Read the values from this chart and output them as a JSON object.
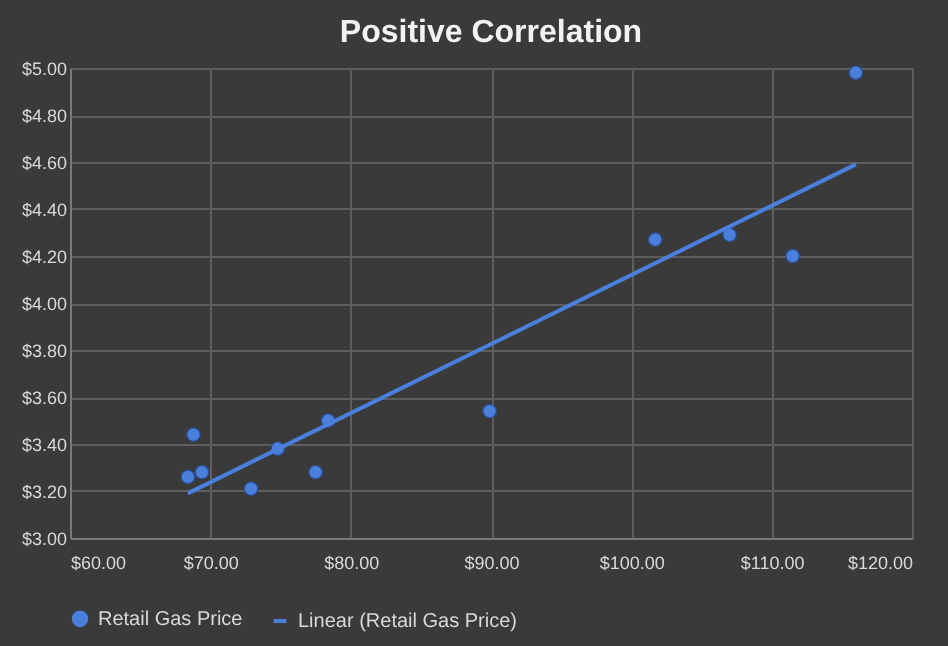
{
  "chart_data": {
    "type": "scatter",
    "title": "Positive Correlation",
    "x": [
      68.8,
      68.4,
      69.4,
      72.9,
      74.8,
      77.5,
      78.4,
      89.9,
      101.7,
      107.0,
      111.5,
      116.0
    ],
    "series": [
      {
        "name": "Retail Gas Price",
        "color": "#4a7fdc",
        "values": [
          3.44,
          3.26,
          3.28,
          3.21,
          3.38,
          3.28,
          3.5,
          3.54,
          4.27,
          4.29,
          4.2,
          4.98
        ],
        "marker": "circle"
      },
      {
        "name": "Linear (Retail Gas Price)",
        "type": "line",
        "color": "#4a7fdc",
        "x": [
          68.4,
          116.0
        ],
        "values": [
          3.19,
          4.59
        ],
        "line_style": "solid"
      }
    ],
    "xlim": [
      60,
      120
    ],
    "xticks": [
      {
        "value": 60,
        "label": "$60.00"
      },
      {
        "value": 70,
        "label": "$70.00"
      },
      {
        "value": 80,
        "label": "$80.00"
      },
      {
        "value": 90,
        "label": "$90.00"
      },
      {
        "value": 100,
        "label": "$100.00"
      },
      {
        "value": 110,
        "label": "$110.00"
      },
      {
        "value": 120,
        "label": "$120.00"
      }
    ],
    "ylim": [
      3.0,
      5.0
    ],
    "yticks": [
      {
        "value": 3.0,
        "label": "$3.00"
      },
      {
        "value": 3.2,
        "label": "$3.20"
      },
      {
        "value": 3.4,
        "label": "$3.40"
      },
      {
        "value": 3.6,
        "label": "$3.60"
      },
      {
        "value": 3.8,
        "label": "$3.80"
      },
      {
        "value": 4.0,
        "label": "$4.00"
      },
      {
        "value": 4.2,
        "label": "$4.20"
      },
      {
        "value": 4.4,
        "label": "$4.40"
      },
      {
        "value": 4.6,
        "label": "$4.60"
      },
      {
        "value": 4.8,
        "label": "$4.80"
      },
      {
        "value": 5.0,
        "label": "$5.00"
      }
    ],
    "grid": true,
    "legend": "bottom"
  }
}
